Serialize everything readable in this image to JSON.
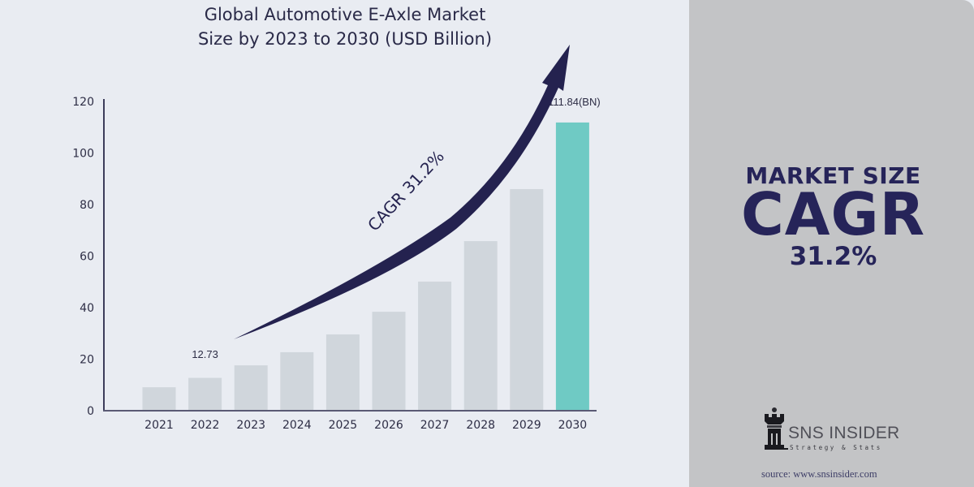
{
  "chart_data": {
    "type": "bar",
    "title": [
      "Global Automotive E-Axle Market",
      "Size by 2023 to 2030 (USD Billion)"
    ],
    "xlabel": "",
    "ylabel": "",
    "ylim": [
      0,
      120
    ],
    "yticks": [
      0,
      20,
      40,
      60,
      80,
      100,
      120
    ],
    "grid": false,
    "categories": [
      "2021",
      "2022",
      "2023",
      "2024",
      "2025",
      "2026",
      "2027",
      "2028",
      "2029",
      "2030"
    ],
    "values": [
      9.1,
      12.73,
      17.6,
      22.7,
      29.6,
      38.4,
      50.1,
      65.8,
      86.0,
      111.84
    ],
    "data_labels": {
      "1": "12.73",
      "9": "111.84(BN)"
    },
    "highlight_index": 9,
    "annotation": "CAGR 31.2%",
    "colors": {
      "bar": "#d0d6dc",
      "highlight": "#6fcac4",
      "axis": "#3c3c5a",
      "arrow": "#24224f",
      "text": "#2d2d45"
    }
  },
  "side_panel": {
    "subtitle": "MARKET SIZE",
    "big": "CAGR",
    "value": "31.2%",
    "logo_name": "SNS INSIDER",
    "logo_tagline": "Strategy & Stats",
    "source": "source: www.snsinsider.com"
  }
}
